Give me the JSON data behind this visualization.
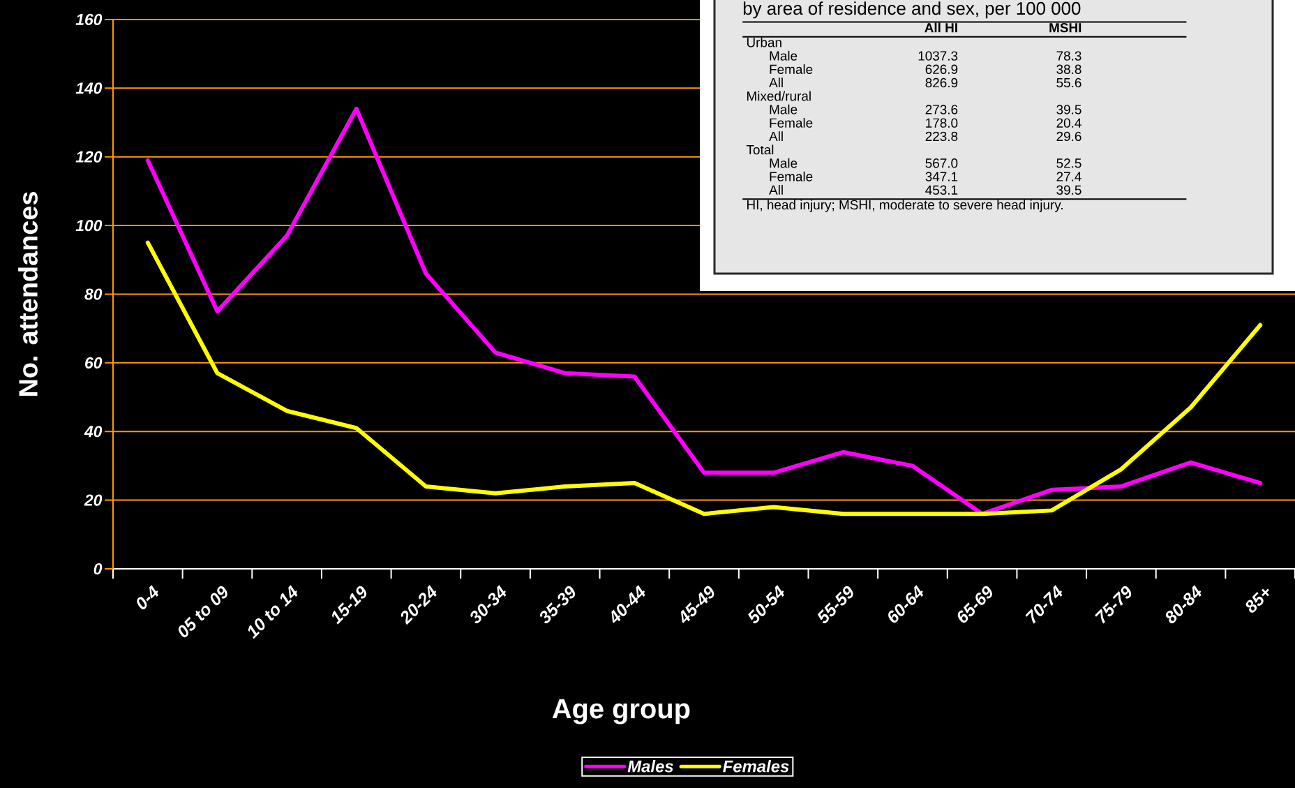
{
  "chart_data": {
    "type": "line",
    "xlabel": "Age group",
    "ylabel": "No. attendances",
    "categories": [
      "0-4",
      "05 to 09",
      "10 to 14",
      "15-19",
      "20-24",
      "30-34",
      "35-39",
      "40-44",
      "45-49",
      "50-54",
      "55-59",
      "60-64",
      "65-69",
      "70-74",
      "75-79",
      "80-84",
      "85+"
    ],
    "series": [
      {
        "name": "Males",
        "color": "#ff00ff",
        "values": [
          119,
          75,
          97,
          134,
          86,
          63,
          57,
          56,
          28,
          28,
          34,
          30,
          16,
          23,
          24,
          31,
          25
        ]
      },
      {
        "name": "Females",
        "color": "#ffff00",
        "values": [
          95,
          57,
          46,
          41,
          24,
          22,
          24,
          25,
          16,
          18,
          16,
          16,
          16,
          17,
          29,
          47,
          71
        ]
      }
    ],
    "ylim": [
      0,
      160
    ],
    "yticks": [
      0,
      20,
      40,
      60,
      80,
      100,
      120,
      140,
      160
    ],
    "grid": "y",
    "legend": "bottom",
    "annotations": [
      "by area of residence and sex, per 100 000",
      "All HI",
      "MSHI",
      "Urban",
      "Male",
      "1037.3",
      "78.3",
      "Female",
      "626.9",
      "38.8",
      "All",
      "826.9",
      "55.6",
      "Mixed/rural",
      "Male",
      "273.6",
      "39.5",
      "Female",
      "178.0",
      "20.4",
      "All",
      "223.8",
      "29.6",
      "Total",
      "Male",
      "567.0",
      "52.5",
      "Female",
      "347.1",
      "27.4",
      "All",
      "453.1",
      "39.5",
      "HI, head injury; MSHI, moderate to severe head injury."
    ]
  }
}
